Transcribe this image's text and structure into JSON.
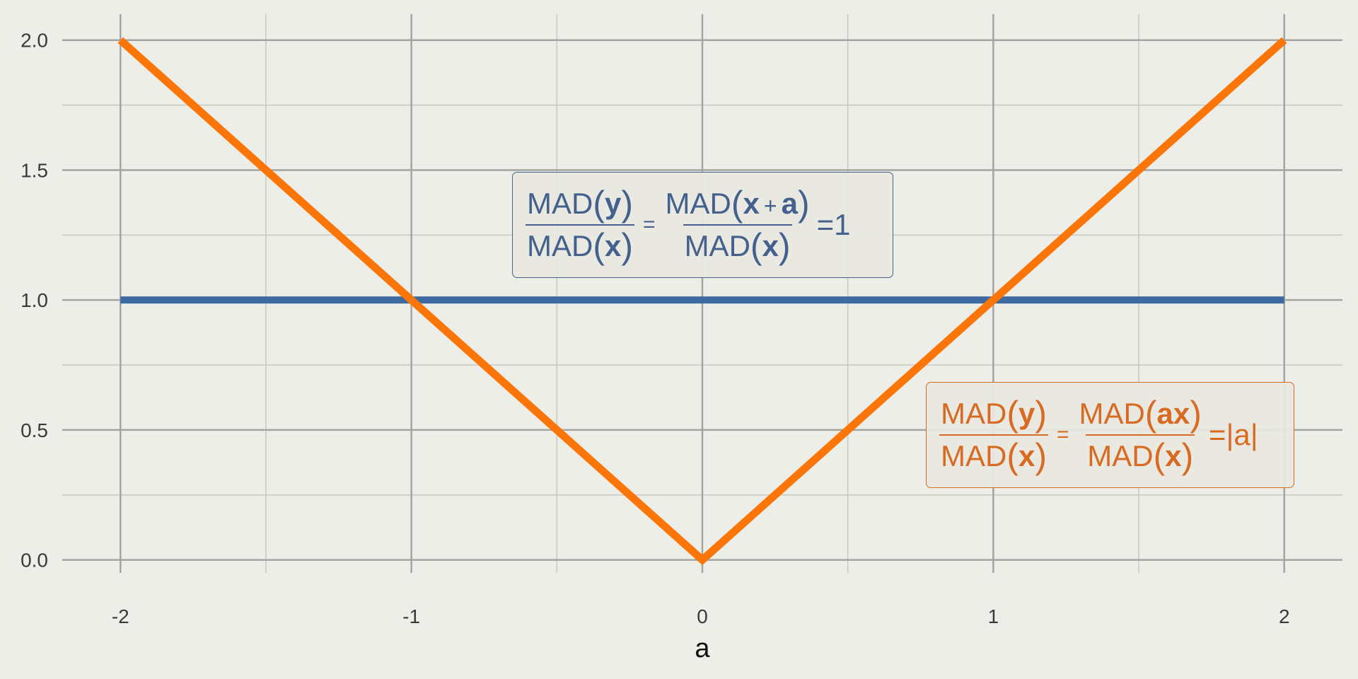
{
  "chart_data": {
    "type": "line",
    "xlabel": "a",
    "ylabel": "",
    "xlim": [
      -2.2,
      2.2
    ],
    "ylim": [
      -0.05,
      2.1
    ],
    "x_ticks": [
      "-2",
      "-1",
      "0",
      "1",
      "2"
    ],
    "y_ticks": [
      "0.0",
      "0.5",
      "1.0",
      "1.5",
      "2.0"
    ],
    "grid": true,
    "series": [
      {
        "color": "#3d6aa0",
        "x": [
          -2,
          2
        ],
        "y": [
          1,
          1
        ]
      },
      {
        "color": "#fb7508",
        "x": [
          -2,
          0,
          2
        ],
        "y": [
          2,
          0,
          2
        ]
      }
    ],
    "annotations": {
      "blue": {
        "color": "#44618e",
        "border": "#44618e",
        "num1": {
          "fn": "MAD",
          "arg": "y"
        },
        "den1": {
          "fn": "MAD",
          "arg": "x"
        },
        "eq": "=",
        "num2": {
          "fn": "MAD",
          "arg1": "x",
          "plus": "+",
          "arg2": "a"
        },
        "den2": {
          "fn": "MAD",
          "arg": "x"
        },
        "rhs": "=1"
      },
      "orange": {
        "color": "#d96a22",
        "border": "#d96a22",
        "num1": {
          "fn": "MAD",
          "arg": "y"
        },
        "den1": {
          "fn": "MAD",
          "arg": "x"
        },
        "eq": "=",
        "num2": {
          "fn": "MAD",
          "arg": "ax"
        },
        "den2": {
          "fn": "MAD",
          "arg": "x"
        },
        "rhs": "=|a|"
      }
    }
  }
}
